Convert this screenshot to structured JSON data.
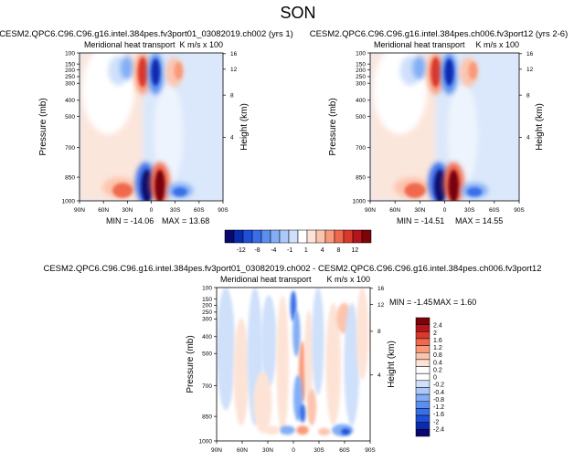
{
  "page_title": "SON",
  "chart_data": [
    {
      "type": "heatmap",
      "title": "CESM2.QPC6.C96.C96.g16.intel.384pes.fv3port01_03082019.ch002 (yrs 1)",
      "left_label": "Meridional heat transport",
      "right_label": "K m/s x 100",
      "xlabel": "",
      "ylabel": "Pressure (mb)",
      "ylabel_right": "Height (km)",
      "x_ticks": [
        "90N",
        "60N",
        "30N",
        "0",
        "30S",
        "60S",
        "90S"
      ],
      "y_ticks": [
        "100",
        "150",
        "200",
        "250",
        "300",
        "400",
        "500",
        "700",
        "850",
        "1000"
      ],
      "right_ticks": [
        "16",
        "12",
        "8",
        "4"
      ],
      "min_label": "MIN = -14.06",
      "max_label": "MAX = 13.68",
      "min": -14.06,
      "max": 13.68
    },
    {
      "type": "heatmap",
      "title": "CESM2.QPC6.C96.C96.g16.intel.384pes.ch006.fv3port12 (yrs 2-6)",
      "left_label": "Meridional heat transport",
      "right_label": "K m/s x 100",
      "xlabel": "",
      "ylabel": "Pressure (mb)",
      "ylabel_right": "Height (km)",
      "x_ticks": [
        "90N",
        "60N",
        "30N",
        "0",
        "30S",
        "60S",
        "90S"
      ],
      "y_ticks": [
        "100",
        "150",
        "200",
        "250",
        "300",
        "400",
        "500",
        "700",
        "850",
        "1000"
      ],
      "right_ticks": [
        "16",
        "12",
        "8",
        "4"
      ],
      "min_label": "MIN = -14.51",
      "max_label": "MAX = 14.55",
      "min": -14.51,
      "max": 14.55
    },
    {
      "type": "heatmap",
      "title": "CESM2.QPC6.C96.C96.g16.intel.384pes.fv3port01_03082019.ch002 - CESM2.QPC6.C96.C96.g16.intel.384pes.ch006.fv3port12",
      "left_label": "Meridional heat transport",
      "right_label": "K m/s x 100",
      "xlabel": "",
      "ylabel": "Pressure (mb)",
      "ylabel_right": "Height (km)",
      "x_ticks": [
        "90N",
        "60N",
        "30N",
        "0",
        "30S",
        "60S",
        "90S"
      ],
      "y_ticks": [
        "100",
        "150",
        "200",
        "250",
        "300",
        "400",
        "500",
        "700",
        "850",
        "1000"
      ],
      "right_ticks": [
        "16",
        "12",
        "8",
        "4"
      ],
      "min_label": "MIN = -1.45",
      "max_label": "MAX =  1.60",
      "min": -1.45,
      "max": 1.6
    }
  ],
  "colorbar_horizontal": {
    "labels": [
      "-12",
      "-8",
      "-4",
      "-1",
      "1",
      "4",
      "8",
      "12"
    ],
    "colors": [
      "#08086e",
      "#0a2bb0",
      "#1e4fd6",
      "#3a6ee8",
      "#5a8ef0",
      "#83aef5",
      "#aac8f8",
      "#cfe0fb",
      "#ffffff",
      "#fde3d6",
      "#fcc4ad",
      "#f99a7c",
      "#f0694e",
      "#d9392c",
      "#b5141c",
      "#7a0408"
    ]
  },
  "colorbar_vertical": {
    "labels": [
      "2.4",
      "2",
      "1.6",
      "1.2",
      "0.8",
      "0.4",
      "0.2",
      "0",
      "-0.2",
      "-0.4",
      "-0.8",
      "-1.2",
      "-1.6",
      "-2",
      "-2.4"
    ],
    "colors": [
      "#7a0408",
      "#b5141c",
      "#d9392c",
      "#f0694e",
      "#f99a7c",
      "#fcc4ad",
      "#fde3d6",
      "#ffffff",
      "#ffffff",
      "#cfe0fb",
      "#aac8f8",
      "#83aef5",
      "#5a8ef0",
      "#3a6ee8",
      "#1e4fd6",
      "#0a2bb0",
      "#08086e"
    ]
  }
}
